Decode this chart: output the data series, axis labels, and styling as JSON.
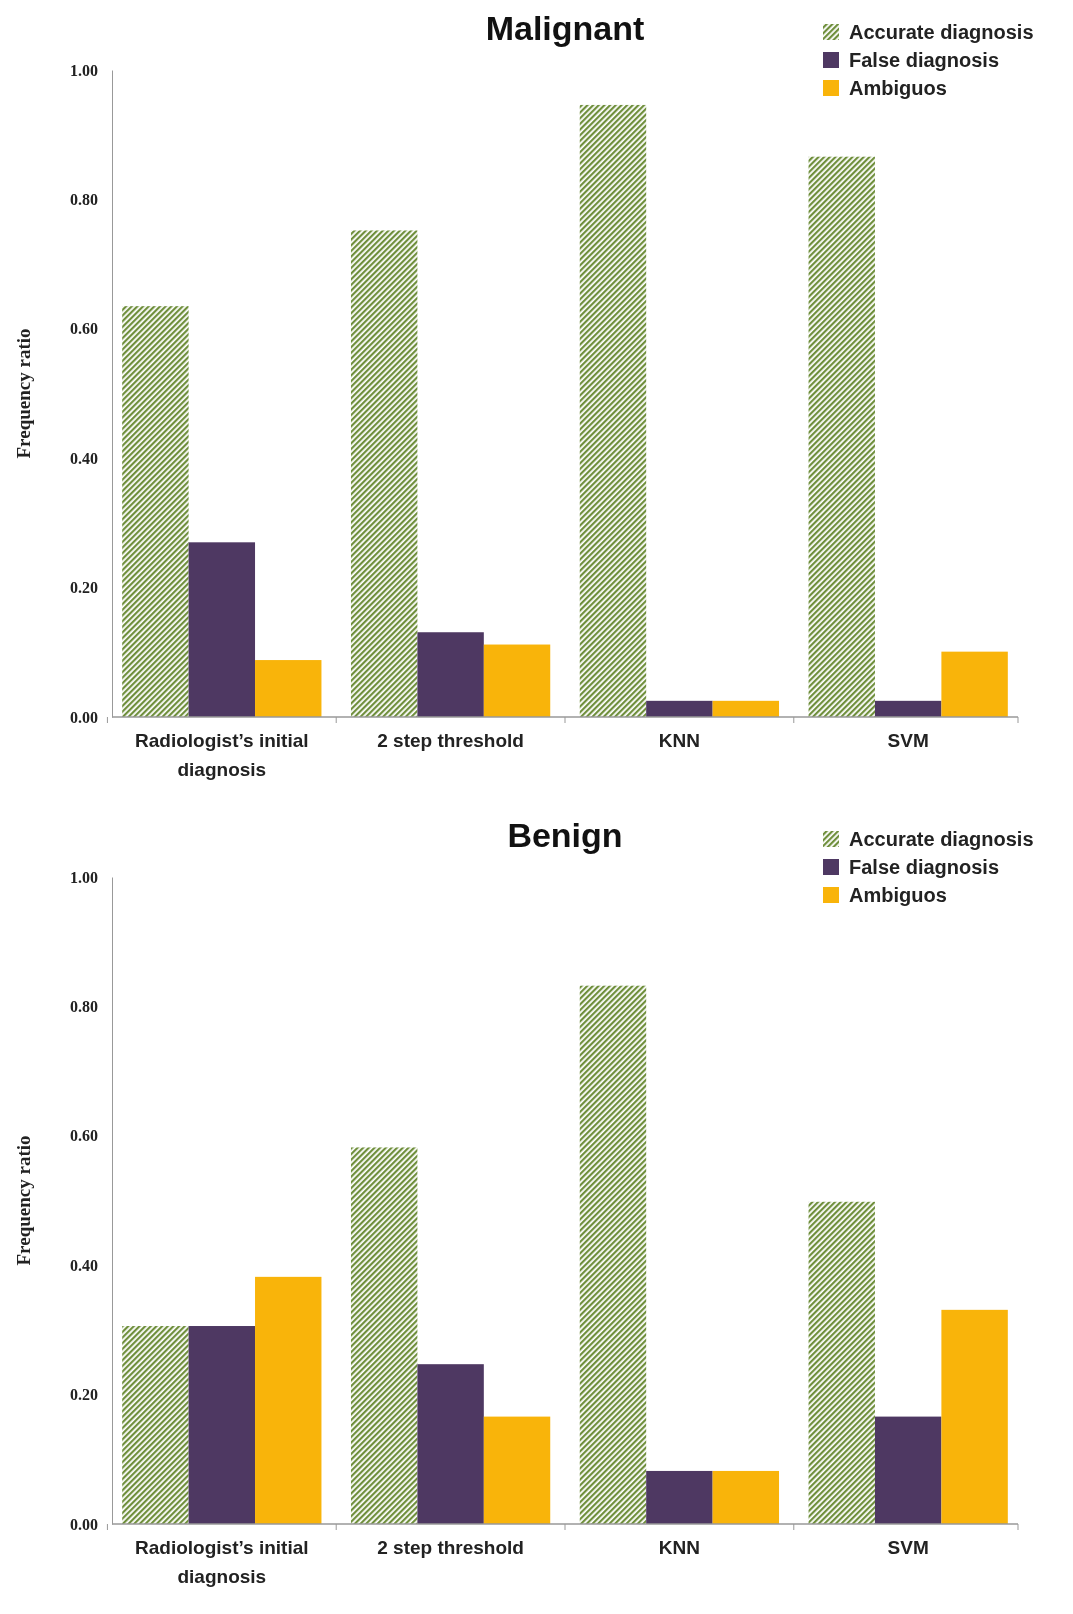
{
  "chart_data": [
    {
      "type": "bar",
      "title": "Malignant",
      "ylabel": "Frequency ratio",
      "categories": [
        "Radiologist’s initial diagnosis",
        "2 step threshold",
        "KNN",
        "SVM"
      ],
      "series": [
        {
          "name": "Accurate diagnosis",
          "color": "#6f8f3c",
          "values": [
            0.635,
            0.752,
            0.946,
            0.866
          ]
        },
        {
          "name": "False diagnosis",
          "color": "#4e3862",
          "values": [
            0.27,
            0.131,
            0.025,
            0.025
          ]
        },
        {
          "name": "Ambiguos",
          "color": "#f9b40a",
          "values": [
            0.088,
            0.112,
            0.025,
            0.101
          ]
        }
      ],
      "ylim": [
        0,
        1
      ],
      "yticks": [
        {
          "value": 0,
          "label": "0.00"
        },
        {
          "value": 0.2,
          "label": "0.20"
        },
        {
          "value": 0.4,
          "label": "0.40"
        },
        {
          "value": 0.6,
          "label": "0.60"
        },
        {
          "value": 0.8,
          "label": "0.80"
        },
        {
          "value": 1,
          "label": "1.00"
        }
      ],
      "grid": false,
      "legend": "top right"
    },
    {
      "type": "bar",
      "title": "Benign",
      "ylabel": "Frequency ratio",
      "categories": [
        "Radiologist’s initial diagnosis",
        "2 step threshold",
        "KNN",
        "SVM"
      ],
      "series": [
        {
          "name": "Accurate diagnosis",
          "color": "#6f8f3c",
          "values": [
            0.306,
            0.582,
            0.832,
            0.498
          ]
        },
        {
          "name": "False diagnosis",
          "color": "#4e3862",
          "values": [
            0.306,
            0.247,
            0.082,
            0.166
          ]
        },
        {
          "name": "Ambiguos",
          "color": "#f9b40a",
          "values": [
            0.382,
            0.166,
            0.082,
            0.331
          ]
        }
      ],
      "ylim": [
        0,
        1
      ],
      "yticks": [
        {
          "value": 0,
          "label": "0.00"
        },
        {
          "value": 0.2,
          "label": "0.20"
        },
        {
          "value": 0.4,
          "label": "0.40"
        },
        {
          "value": 0.6,
          "label": "0.60"
        },
        {
          "value": 0.8,
          "label": "0.80"
        },
        {
          "value": 1,
          "label": "1.00"
        }
      ],
      "grid": false,
      "legend": "top right"
    }
  ]
}
